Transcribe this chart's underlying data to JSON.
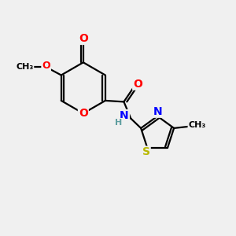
{
  "background_color": "#f0f0f0",
  "bond_color": "#000000",
  "atom_colors": {
    "O": "#ff0000",
    "N": "#0000ff",
    "S": "#b8b800",
    "C": "#000000",
    "H": "#5f9ea0"
  },
  "font_size": 10,
  "fig_size": [
    3.0,
    3.0
  ],
  "dpi": 100
}
